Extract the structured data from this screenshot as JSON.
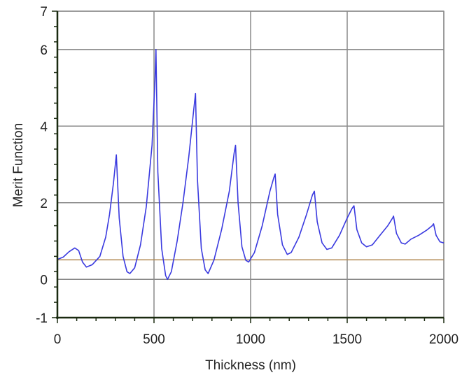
{
  "chart_data": {
    "type": "line",
    "title": "",
    "xlabel": "Thickness (nm)",
    "ylabel": "Merit Function",
    "xlim": [
      0,
      2000
    ],
    "ylim": [
      -1,
      7
    ],
    "xticks": [
      0,
      500,
      1000,
      1500,
      2000
    ],
    "yticks": [
      -1,
      0,
      2,
      4,
      6,
      7
    ],
    "xtick_labels": [
      "0",
      "500",
      "1000",
      "1500",
      "2000"
    ],
    "ytick_labels": [
      "-1",
      "0",
      "2",
      "4",
      "6",
      "7"
    ],
    "grid": true,
    "legend": null,
    "reference_line": {
      "y": 0.51,
      "color": "#b08850"
    },
    "series": [
      {
        "name": "Merit Function",
        "color": "#3a3adf",
        "x": [
          0,
          30,
          60,
          90,
          110,
          130,
          150,
          180,
          220,
          250,
          270,
          290,
          305,
          320,
          340,
          360,
          375,
          400,
          430,
          460,
          490,
          505,
          510,
          520,
          540,
          560,
          570,
          590,
          620,
          650,
          680,
          705,
          715,
          725,
          745,
          765,
          780,
          810,
          850,
          890,
          915,
          922,
          935,
          955,
          975,
          990,
          1020,
          1060,
          1100,
          1120,
          1127,
          1140,
          1165,
          1190,
          1210,
          1250,
          1290,
          1320,
          1330,
          1345,
          1370,
          1395,
          1420,
          1460,
          1500,
          1525,
          1535,
          1550,
          1575,
          1600,
          1630,
          1670,
          1710,
          1735,
          1740,
          1755,
          1780,
          1800,
          1830,
          1870,
          1910,
          1940,
          1947,
          1960,
          1980,
          2000
        ],
        "y": [
          0.52,
          0.58,
          0.72,
          0.82,
          0.75,
          0.45,
          0.32,
          0.38,
          0.6,
          1.1,
          1.7,
          2.5,
          3.25,
          1.6,
          0.6,
          0.2,
          0.15,
          0.3,
          0.9,
          1.9,
          3.5,
          5.2,
          6.0,
          2.8,
          0.8,
          0.1,
          0.0,
          0.2,
          1.0,
          2.0,
          3.2,
          4.4,
          4.85,
          2.6,
          0.8,
          0.25,
          0.15,
          0.5,
          1.3,
          2.3,
          3.3,
          3.5,
          2.0,
          0.85,
          0.5,
          0.45,
          0.7,
          1.4,
          2.3,
          2.65,
          2.75,
          1.7,
          0.9,
          0.65,
          0.7,
          1.1,
          1.7,
          2.2,
          2.3,
          1.5,
          0.95,
          0.78,
          0.82,
          1.15,
          1.6,
          1.85,
          1.92,
          1.3,
          0.95,
          0.85,
          0.9,
          1.15,
          1.4,
          1.6,
          1.65,
          1.2,
          0.95,
          0.92,
          1.05,
          1.15,
          1.28,
          1.4,
          1.45,
          1.15,
          0.98,
          0.95
        ]
      }
    ]
  }
}
